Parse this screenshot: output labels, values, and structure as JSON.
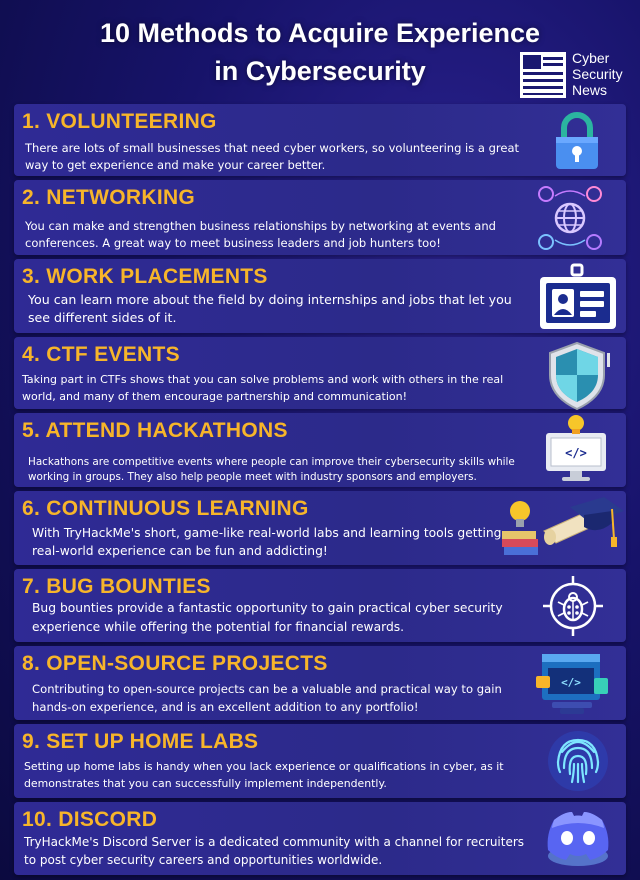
{
  "title": {
    "line1": "10 Methods to Acquire Experience",
    "line2": "in Cybersecurity"
  },
  "logo": {
    "line1": "Cyber",
    "line2": "Security",
    "line3": "News",
    "icon": "flag-icon"
  },
  "colors": {
    "heading": "#f7b52a",
    "card": "#2f2a95",
    "background": "#17136a"
  },
  "methods": [
    {
      "heading": "1. VOLUNTEERING",
      "text": "There are lots of small businesses that need cyber workers, so volunteering is a great way to get experience and make your career better.",
      "icon": "padlock-icon"
    },
    {
      "heading": "2. NETWORKING",
      "text": "You can make and strengthen business relationships by networking at events and conferences. A great way to meet business leaders and job hunters too!",
      "icon": "network-globe-icon"
    },
    {
      "heading": "3. WORK PLACEMENTS",
      "text": "You can learn more about the field by doing internships and jobs that let you see different sides of it.",
      "icon": "id-badge-icon"
    },
    {
      "heading": "4. CTF EVENTS",
      "text": "Taking part in CTFs shows that you can solve problems and work with others in the real world, and many of them encourage partnership and communication!",
      "icon": "shield-icon"
    },
    {
      "heading": "5. ATTEND HACKATHONS",
      "text": "Hackathons are competitive events where people can improve their cybersecurity skills while working in groups. They also help people meet with industry sponsors and employers.",
      "icon": "monitor-lightbulb-icon"
    },
    {
      "heading": "6. CONTINUOUS LEARNING",
      "text": "With TryHackMe's short, game-like real-world labs and learning tools getting real-world experience can be fun and addicting!",
      "icon": "graduation-cap-icon"
    },
    {
      "heading": "7. BUG BOUNTIES",
      "text": "Bug bounties provide a fantastic opportunity to gain practical cyber security experience while offering the potential for financial rewards.",
      "icon": "bug-icon"
    },
    {
      "heading": "8. OPEN-SOURCE PROJECTS",
      "text": "Contributing to open-source projects can be a valuable and practical way to gain hands-on experience, and is an excellent addition to any portfolio!",
      "icon": "code-window-icon"
    },
    {
      "heading": "9. SET UP HOME LABS",
      "text": "Setting up home labs is handy when you lack experience or qualifications in cyber, as it demonstrates that you can successfully implement independently.",
      "icon": "fingerprint-icon"
    },
    {
      "heading": "10. DISCORD",
      "text": "TryHackMe's Discord Server is a dedicated community with a channel for recruiters to post cyber security careers and opportunities worldwide.",
      "icon": "discord-icon"
    }
  ]
}
